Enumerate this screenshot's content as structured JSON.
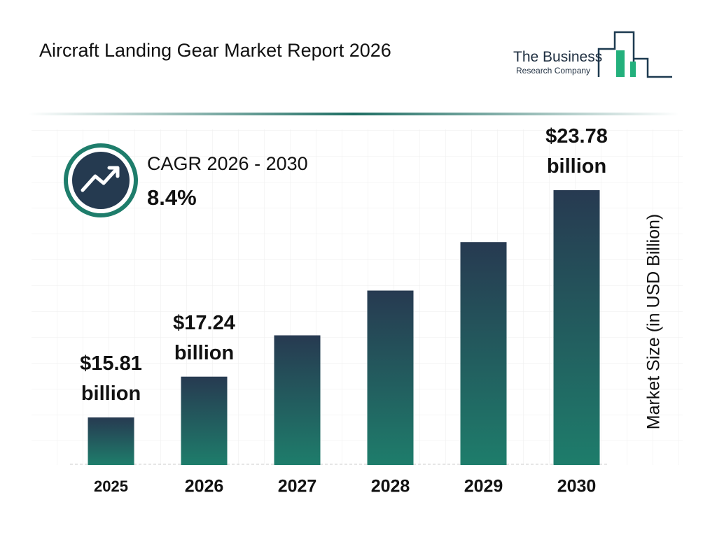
{
  "chart_data": {
    "type": "bar",
    "title": "Aircraft Landing Gear Market Report 2026",
    "logo": [
      "The Business",
      "Research Company"
    ],
    "cagr_label": "CAGR 2026 - 2030",
    "cagr_value": "8.4%",
    "y_label": "Market Size (in USD Billion)",
    "categories": [
      "2025",
      "2026",
      "2027",
      "2028",
      "2029",
      "2030"
    ],
    "values": [
      15.81,
      17.24,
      18.69,
      20.26,
      21.96,
      23.78
    ],
    "value_labels": [
      "$15.81 billion",
      "$17.24 billion",
      null,
      null,
      null,
      "$23.78 billion"
    ],
    "gradient": [
      "#273a51",
      "#1e7d6b"
    ]
  }
}
